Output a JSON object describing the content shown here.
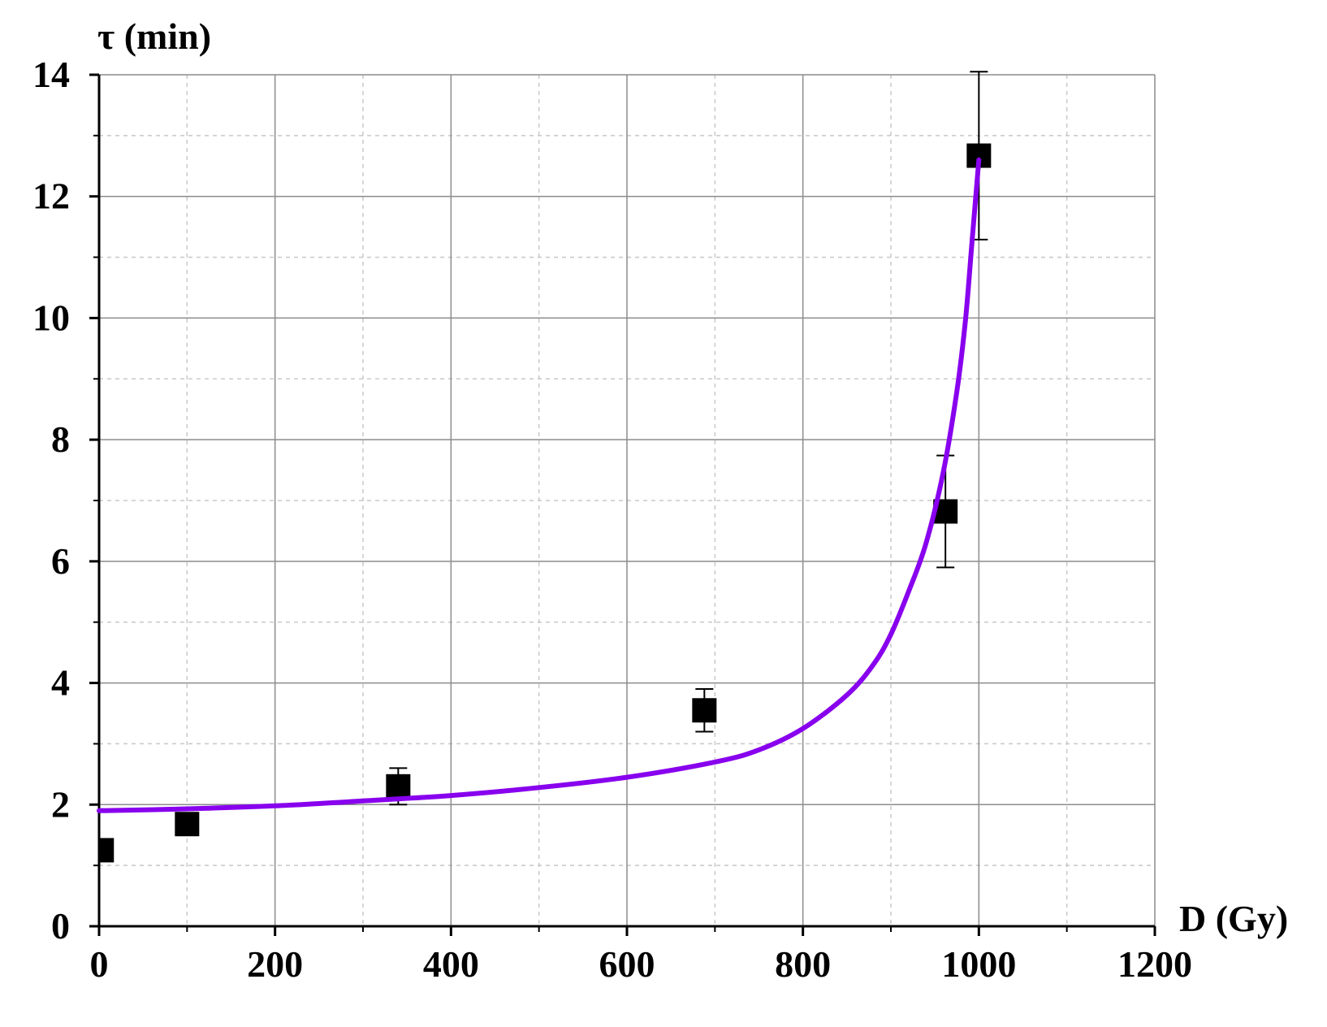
{
  "chart_data": {
    "type": "scatter",
    "xlabel": "D (Gy)",
    "ylabel": "τ (min)",
    "xlim": [
      0,
      1200
    ],
    "ylim": [
      0,
      14
    ],
    "xticks": [
      0,
      200,
      400,
      600,
      800,
      1000,
      1200
    ],
    "yticks": [
      0,
      2,
      4,
      6,
      8,
      10,
      12,
      14
    ],
    "xtick_labels": [
      "0",
      "200",
      "400",
      "600",
      "800",
      "1000",
      "1200"
    ],
    "ytick_labels": [
      "0",
      "2",
      "4",
      "6",
      "8",
      "10",
      "12",
      "14"
    ],
    "grid": true,
    "series": [
      {
        "kind": "points",
        "marker": "square",
        "color": "#000000",
        "points": [
          {
            "x": 3,
            "y": 1.25,
            "err": 0
          },
          {
            "x": 100,
            "y": 1.68,
            "err": 0
          },
          {
            "x": 340,
            "y": 2.3,
            "err": 0.3
          },
          {
            "x": 688,
            "y": 3.55,
            "err": 0.35
          },
          {
            "x": 962,
            "y": 6.82,
            "err": 0.92
          },
          {
            "x": 1000,
            "y": 12.67,
            "err": 1.38
          }
        ]
      },
      {
        "kind": "fit",
        "color": "#8800ee",
        "x": [
          0,
          100,
          200,
          300,
          400,
          500,
          600,
          700,
          750,
          800,
          850,
          880,
          900,
          920,
          940,
          960,
          975,
          985,
          993,
          1000
        ],
        "y": [
          1.9,
          1.93,
          1.98,
          2.06,
          2.15,
          2.28,
          2.45,
          2.7,
          2.9,
          3.25,
          3.8,
          4.3,
          4.8,
          5.5,
          6.3,
          7.5,
          8.8,
          10.0,
          11.4,
          12.6
        ]
      }
    ]
  }
}
